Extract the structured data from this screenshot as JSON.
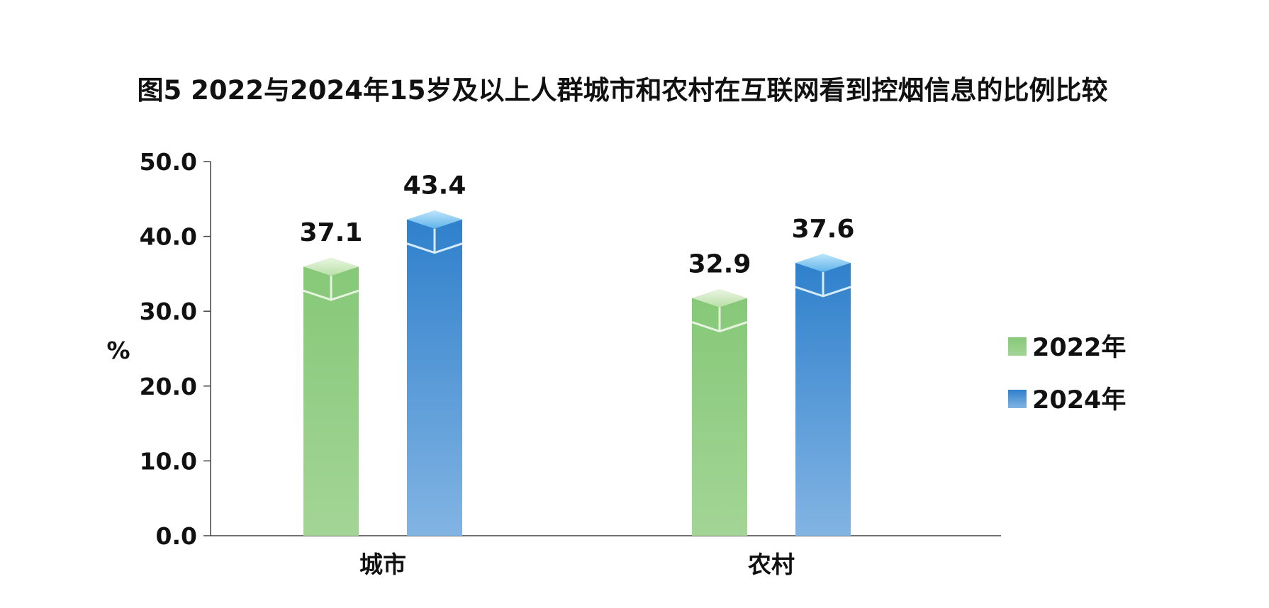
{
  "chart_data": {
    "type": "bar",
    "title": "图5 2022与2024年15岁及以上人群城市和农村在互联网看到控烟信息的比例比较",
    "ylabel": "%",
    "xlabel": "",
    "categories": [
      "城市",
      "农村"
    ],
    "yticks": [
      "0.0",
      "10.0",
      "20.0",
      "30.0",
      "40.0",
      "50.0"
    ],
    "ylim": [
      0,
      50
    ],
    "legend": "right",
    "grid": false,
    "series": [
      {
        "name": "2022年",
        "values": [
          37.1,
          32.9
        ],
        "labels": [
          "37.1",
          "32.9"
        ],
        "color": "#8ccc7d"
      },
      {
        "name": "2024年",
        "values": [
          43.4,
          37.6
        ],
        "labels": [
          "43.4",
          "37.6"
        ],
        "color": "#3d8fd6"
      }
    ]
  }
}
